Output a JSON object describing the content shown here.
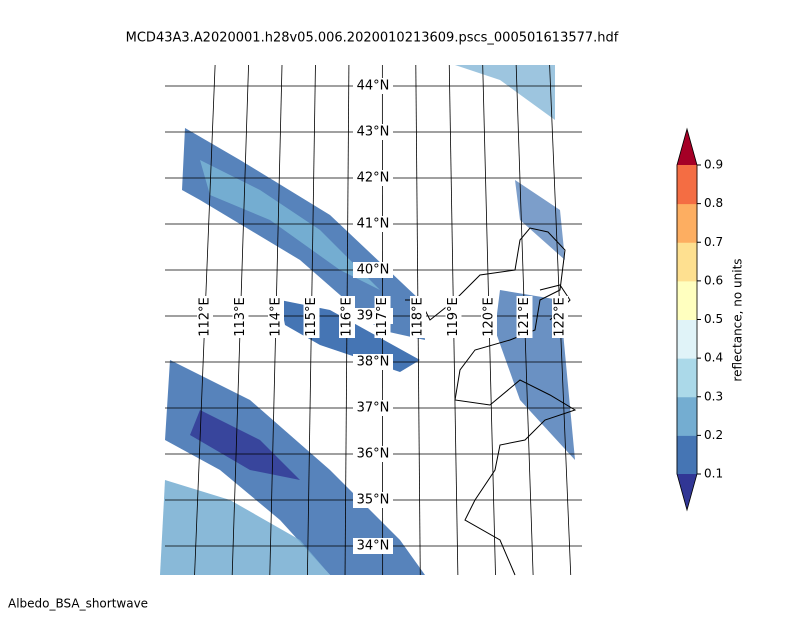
{
  "title": "MCD43A3.A2020001.h28v05.006.2020010213609.pscs_000501613577.hdf",
  "map": {
    "lat_labels": [
      {
        "value": 44,
        "label": "44°N"
      },
      {
        "value": 43,
        "label": "43°N"
      },
      {
        "value": 42,
        "label": "42°N"
      },
      {
        "value": 41,
        "label": "41°N"
      },
      {
        "value": 40,
        "label": "40°N"
      },
      {
        "value": 39,
        "label": "39°N"
      },
      {
        "value": 38,
        "label": "38°N"
      },
      {
        "value": 37,
        "label": "37°N"
      },
      {
        "value": 36,
        "label": "36°N"
      },
      {
        "value": 35,
        "label": "35°N"
      },
      {
        "value": 34,
        "label": "34°N"
      }
    ],
    "lon_labels": [
      {
        "value": 112,
        "label": "112°E"
      },
      {
        "value": 113,
        "label": "113°E"
      },
      {
        "value": 114,
        "label": "114°E"
      },
      {
        "value": 115,
        "label": "115°E"
      },
      {
        "value": 116,
        "label": "116°E"
      },
      {
        "value": 117,
        "label": "117°E"
      },
      {
        "value": 118,
        "label": "118°E"
      },
      {
        "value": 119,
        "label": "119°E"
      },
      {
        "value": 120,
        "label": "120°E"
      },
      {
        "value": 121,
        "label": "121°E"
      },
      {
        "value": 122,
        "label": "122°E"
      }
    ]
  },
  "colorbar": {
    "label": "reflectance, no units",
    "clim": [
      0.1,
      0.9
    ],
    "ticks": [
      0.1,
      0.2,
      0.3,
      0.4,
      0.5,
      0.6,
      0.7,
      0.8,
      0.9
    ],
    "colors": [
      "#4575b4",
      "#74add1",
      "#abd9e9",
      "#e0f3f8",
      "#ffffbf",
      "#fee090",
      "#fdae61",
      "#f46d43"
    ],
    "under_color": "#313695",
    "over_color": "#a50026"
  },
  "footer": "Albedo_BSA_shortwave"
}
